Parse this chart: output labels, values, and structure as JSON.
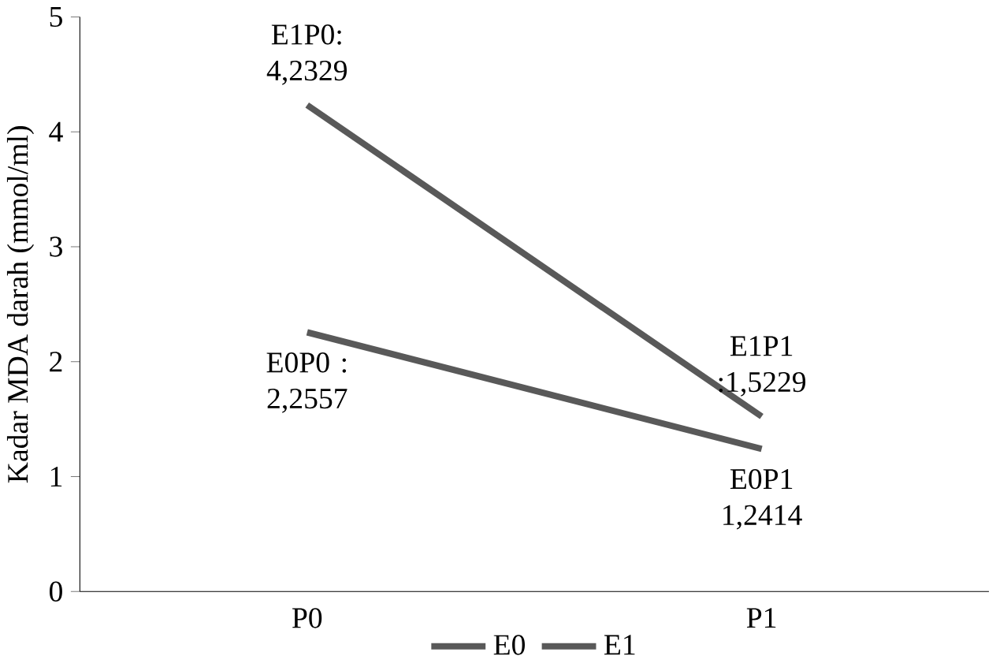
{
  "chart_data": {
    "type": "line",
    "ylabel": "Kadar MDA darah (mmol/ml)",
    "categories": [
      "P0",
      "P1"
    ],
    "series": [
      {
        "name": "E0",
        "color": "#595959",
        "values": [
          2.2557,
          1.2414
        ]
      },
      {
        "name": "E1",
        "color": "#595959",
        "values": [
          4.2329,
          1.5229
        ]
      }
    ],
    "ylim": [
      0,
      5
    ],
    "yticks": [
      0,
      1,
      2,
      3,
      4,
      5
    ],
    "grid": false,
    "legend": "bottom",
    "marker": "none",
    "line_style": "solid",
    "annotations": [
      {
        "text": "E1P0: 4,2329",
        "x": "P0",
        "y": 4.2329
      },
      {
        "text": "E0P0 : 2,2557",
        "x": "P0",
        "y": 2.2557
      },
      {
        "text": "E1P1 :1,5229",
        "x": "P1",
        "y": 1.5229
      },
      {
        "text": "E0P1 1,2414",
        "x": "P1",
        "y": 1.2414
      }
    ]
  }
}
